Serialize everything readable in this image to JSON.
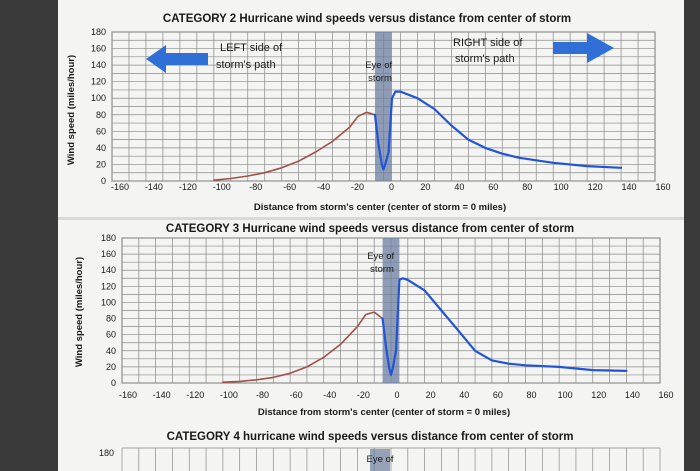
{
  "colors": {
    "page": "#f4f4f2",
    "eye_band": "#6e7fa0",
    "left_curve": "#a0524a",
    "right_curve": "#2255d6",
    "arrow": "#2f6fd6"
  },
  "chart_data": [
    {
      "type": "line",
      "title": "CATEGORY 2 Hurricane wind speeds versus distance from center of storm",
      "xlabel": "Distance from storm's center (center of storm = 0 miles)",
      "ylabel": "Wind speed (miles/hour)",
      "xlim": [
        -160,
        160
      ],
      "ylim": [
        0,
        180
      ],
      "x_ticks": [
        "-160",
        "-140",
        "-120",
        "-100",
        "-80",
        "-60",
        "-40",
        "-20",
        "0",
        "20",
        "40",
        "60",
        "80",
        "100",
        "120",
        "140",
        "160"
      ],
      "y_ticks": [
        "0",
        "20",
        "40",
        "60",
        "80",
        "100",
        "120",
        "140",
        "160",
        "180"
      ],
      "grid": true,
      "eye_band": [
        -5,
        5
      ],
      "annotations": {
        "left": "LEFT side of storm's path",
        "right": "RIGHT side of storm's path",
        "eye": "Eye of storm"
      },
      "series": [
        {
          "color": "#a0524a",
          "x": [
            -100,
            -90,
            -80,
            -70,
            -60,
            -50,
            -40,
            -30,
            -20,
            -15,
            -10,
            -5
          ],
          "y": [
            1,
            3,
            6,
            10,
            16,
            24,
            35,
            48,
            65,
            78,
            83,
            80
          ]
        },
        {
          "color": "#2255d6",
          "x": [
            -5,
            -3,
            -1,
            0,
            1,
            3,
            5,
            7,
            10,
            20,
            30,
            40,
            50,
            60,
            70,
            80,
            100,
            120,
            140
          ],
          "y": [
            80,
            45,
            20,
            14,
            20,
            35,
            100,
            108,
            108,
            100,
            87,
            67,
            50,
            40,
            33,
            28,
            22,
            18,
            16
          ]
        }
      ]
    },
    {
      "type": "line",
      "title": "CATEGORY 3 Hurricane wind speeds versus distance from center of storm",
      "xlabel": "Distance from storm's center (center of storm = 0 miles)",
      "ylabel": "Wind speed (miles/hour)",
      "xlim": [
        -160,
        160
      ],
      "ylim": [
        0,
        180
      ],
      "x_ticks": [
        "-160",
        "-140",
        "-120",
        "-100",
        "-80",
        "-60",
        "-40",
        "-20",
        "0",
        "20",
        "40",
        "60",
        "80",
        "100",
        "120",
        "140",
        "160"
      ],
      "y_ticks": [
        "0",
        "20",
        "40",
        "60",
        "80",
        "100",
        "120",
        "140",
        "160",
        "180"
      ],
      "grid": true,
      "eye_band": [
        -5,
        5
      ],
      "annotations": {
        "eye": "Eye of storm"
      },
      "series": [
        {
          "color": "#a0524a",
          "x": [
            -100,
            -90,
            -80,
            -70,
            -60,
            -50,
            -40,
            -30,
            -20,
            -15,
            -10,
            -5
          ],
          "y": [
            1,
            2,
            4,
            7,
            12,
            20,
            32,
            48,
            70,
            85,
            88,
            80
          ]
        },
        {
          "color": "#2255d6",
          "x": [
            -5,
            -3,
            -1,
            0,
            1,
            3,
            5,
            7,
            10,
            20,
            30,
            40,
            50,
            60,
            70,
            80,
            100,
            120,
            140
          ],
          "y": [
            80,
            45,
            18,
            10,
            18,
            40,
            128,
            130,
            128,
            115,
            90,
            65,
            40,
            28,
            24,
            22,
            20,
            16,
            15
          ]
        }
      ]
    },
    {
      "type": "line",
      "title": "CATEGORY 4 hurricane wind speeds versus distance from center of storm",
      "y_ticks": [
        "180"
      ],
      "annotations": {
        "eye": "Eye of"
      }
    }
  ]
}
